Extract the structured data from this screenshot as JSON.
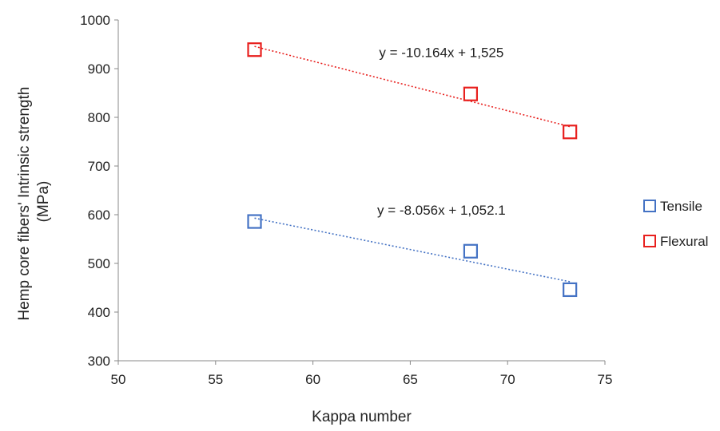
{
  "chart_data": {
    "type": "scatter",
    "title": "",
    "xlabel": "Kappa number",
    "ylabel_lines": [
      "Hemp core fibers' Intrinsic strength",
      "(MPa)"
    ],
    "xlim": [
      50,
      75
    ],
    "ylim": [
      300,
      1000
    ],
    "xticks": [
      50,
      55,
      60,
      65,
      70,
      75
    ],
    "yticks": [
      300,
      400,
      500,
      600,
      700,
      800,
      900,
      1000
    ],
    "grid": false,
    "legend_position": "right",
    "series": [
      {
        "name": "Tensile",
        "color": "#4472C4",
        "marker": "hollow-square",
        "x": [
          57.0,
          68.1,
          73.2
        ],
        "y": [
          586,
          525,
          446
        ],
        "trendline": {
          "slope": -8.056,
          "intercept": 1052.1,
          "style": "dotted",
          "x_range": [
            57.0,
            73.2
          ]
        },
        "equation": "y = -8.056x + 1,052.1",
        "equation_at": {
          "x": 66.6,
          "y": 600
        }
      },
      {
        "name": "Flexural",
        "color": "#E8201E",
        "marker": "hollow-square",
        "x": [
          57.0,
          68.1,
          73.2
        ],
        "y": [
          939,
          848,
          770
        ],
        "trendline": {
          "slope": -10.164,
          "intercept": 1525,
          "style": "dotted",
          "x_range": [
            57.0,
            73.2
          ]
        },
        "equation": "y = -10.164x + 1,525",
        "equation_at": {
          "x": 66.6,
          "y": 924
        }
      }
    ]
  }
}
